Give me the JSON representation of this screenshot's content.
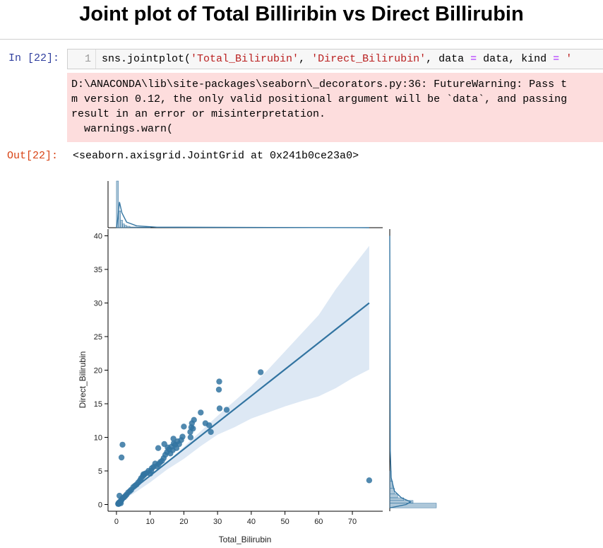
{
  "title": "Joint plot of Total Billiribin vs Direct Billirubin",
  "cells": {
    "input_prompt": "In [22]:",
    "line_number": "1",
    "code": {
      "p1": "sns.jointplot(",
      "s1": "'Total_Bilirubin'",
      "p2": ", ",
      "s2": "'Direct_Bilirubin'",
      "p3": ", data ",
      "eq1": "=",
      "p4": " data, kind ",
      "eq2": "=",
      "p5": " '"
    },
    "stderr": [
      "D:\\ANACONDA\\lib\\site-packages\\seaborn\\_decorators.py:36: FutureWarning: Pass t",
      "m version 0.12, the only valid positional argument will be `data`, and passing",
      "result in an error or misinterpretation.",
      "  warnings.warn("
    ],
    "output_prompt": "Out[22]:",
    "output_text": "<seaborn.axisgrid.JointGrid at 0x241b0ce23a0>"
  },
  "colors": {
    "points": "#3274a1",
    "band": "#c6d9ec",
    "stderr_bg": "#fddddd"
  },
  "chart_data": {
    "type": "scatter",
    "kind": "reg",
    "xlabel": "Total_Bilirubin",
    "ylabel": "Direct_Bilirubin",
    "xlim": [
      -2.5,
      79
    ],
    "ylim": [
      -1,
      41
    ],
    "xticks": [
      0,
      10,
      20,
      30,
      40,
      50,
      60,
      70
    ],
    "yticks": [
      0,
      5,
      10,
      15,
      20,
      25,
      30,
      35,
      40
    ],
    "regression_line": {
      "x": [
        0.4,
        75
      ],
      "y": [
        0.5,
        30
      ]
    },
    "confidence_band": {
      "x": [
        0.4,
        5,
        10,
        15,
        20,
        25,
        30,
        35,
        40,
        45,
        50,
        55,
        60,
        65,
        70,
        75
      ],
      "upper": [
        0.8,
        2.3,
        4.3,
        6.3,
        8.6,
        10.9,
        13.2,
        15.4,
        17.6,
        20.1,
        22.8,
        25.5,
        28.2,
        32.0,
        35.3,
        38.5
      ],
      "lower": [
        0.3,
        1.6,
        3.3,
        5.2,
        6.8,
        8.7,
        10.4,
        11.5,
        12.8,
        13.7,
        14.6,
        15.4,
        16.1,
        17.3,
        18.8,
        20.1
      ]
    },
    "points": [
      {
        "x": 0.5,
        "y": 0.1
      },
      {
        "x": 0.6,
        "y": 0.2
      },
      {
        "x": 0.7,
        "y": 0.2
      },
      {
        "x": 0.8,
        "y": 0.2
      },
      {
        "x": 0.9,
        "y": 0.3
      },
      {
        "x": 1.0,
        "y": 0.3
      },
      {
        "x": 0.6,
        "y": 0.1
      },
      {
        "x": 0.7,
        "y": 0.1
      },
      {
        "x": 0.8,
        "y": 0.3
      },
      {
        "x": 1.1,
        "y": 0.4
      },
      {
        "x": 1.2,
        "y": 0.5
      },
      {
        "x": 1.4,
        "y": 0.6
      },
      {
        "x": 1.5,
        "y": 0.7
      },
      {
        "x": 1.8,
        "y": 0.9
      },
      {
        "x": 2.0,
        "y": 1.0
      },
      {
        "x": 2.3,
        "y": 1.1
      },
      {
        "x": 2.7,
        "y": 1.3
      },
      {
        "x": 0.9,
        "y": 1.3
      },
      {
        "x": 1.3,
        "y": 0.2
      },
      {
        "x": 3.0,
        "y": 1.5
      },
      {
        "x": 3.5,
        "y": 1.8
      },
      {
        "x": 4.0,
        "y": 2.0
      },
      {
        "x": 4.4,
        "y": 2.2
      },
      {
        "x": 5.0,
        "y": 2.6
      },
      {
        "x": 5.5,
        "y": 2.8
      },
      {
        "x": 6.0,
        "y": 3.0
      },
      {
        "x": 6.5,
        "y": 3.3
      },
      {
        "x": 7.0,
        "y": 3.6
      },
      {
        "x": 7.3,
        "y": 3.9
      },
      {
        "x": 7.8,
        "y": 4.2
      },
      {
        "x": 8.0,
        "y": 4.5
      },
      {
        "x": 8.2,
        "y": 4.4
      },
      {
        "x": 8.5,
        "y": 4.6
      },
      {
        "x": 9.0,
        "y": 4.7
      },
      {
        "x": 9.5,
        "y": 5.0
      },
      {
        "x": 10.0,
        "y": 4.6
      },
      {
        "x": 10.3,
        "y": 5.0
      },
      {
        "x": 10.5,
        "y": 5.4
      },
      {
        "x": 11.0,
        "y": 5.6
      },
      {
        "x": 11.5,
        "y": 6.1
      },
      {
        "x": 12.0,
        "y": 5.7
      },
      {
        "x": 12.5,
        "y": 6.0
      },
      {
        "x": 13.0,
        "y": 6.3
      },
      {
        "x": 13.5,
        "y": 6.5
      },
      {
        "x": 14.0,
        "y": 6.9
      },
      {
        "x": 14.5,
        "y": 7.4
      },
      {
        "x": 15.0,
        "y": 7.8
      },
      {
        "x": 15.2,
        "y": 8.5
      },
      {
        "x": 15.6,
        "y": 8.2
      },
      {
        "x": 16.0,
        "y": 7.6
      },
      {
        "x": 16.3,
        "y": 8.6
      },
      {
        "x": 16.7,
        "y": 8.1
      },
      {
        "x": 17.0,
        "y": 9.1
      },
      {
        "x": 17.4,
        "y": 8.9
      },
      {
        "x": 17.8,
        "y": 8.4
      },
      {
        "x": 18.1,
        "y": 9.4
      },
      {
        "x": 18.6,
        "y": 9.0
      },
      {
        "x": 19.2,
        "y": 9.6
      },
      {
        "x": 19.6,
        "y": 10.1
      },
      {
        "x": 20.0,
        "y": 11.6
      },
      {
        "x": 12.4,
        "y": 8.4
      },
      {
        "x": 14.2,
        "y": 9.0
      },
      {
        "x": 16.9,
        "y": 9.8
      },
      {
        "x": 21.9,
        "y": 10.8
      },
      {
        "x": 22.2,
        "y": 11.5
      },
      {
        "x": 22.4,
        "y": 12.1
      },
      {
        "x": 22.7,
        "y": 11.3
      },
      {
        "x": 23.0,
        "y": 12.6
      },
      {
        "x": 22.0,
        "y": 10.0
      },
      {
        "x": 25.0,
        "y": 13.7
      },
      {
        "x": 26.4,
        "y": 12.1
      },
      {
        "x": 27.5,
        "y": 11.8
      },
      {
        "x": 28.0,
        "y": 10.8
      },
      {
        "x": 30.5,
        "y": 18.3
      },
      {
        "x": 30.4,
        "y": 17.1
      },
      {
        "x": 30.6,
        "y": 14.3
      },
      {
        "x": 32.7,
        "y": 14.1
      },
      {
        "x": 42.8,
        "y": 19.7
      },
      {
        "x": 1.8,
        "y": 8.9
      },
      {
        "x": 1.5,
        "y": 7.0
      },
      {
        "x": 75.0,
        "y": 3.6
      }
    ],
    "marginal_x": {
      "bins": [
        0.6,
        1.2,
        1.8,
        2.4,
        3.0,
        4.0,
        6.0,
        10.0
      ],
      "heights": [
        1.0,
        0.36,
        0.16,
        0.08,
        0.05,
        0.03,
        0.015,
        0.01
      ]
    },
    "marginal_y": {
      "bins": [
        0.2,
        0.6,
        1.0,
        1.6,
        2.4,
        3.5,
        5.0
      ],
      "heights": [
        1.0,
        0.5,
        0.3,
        0.17,
        0.1,
        0.06,
        0.03
      ]
    }
  }
}
